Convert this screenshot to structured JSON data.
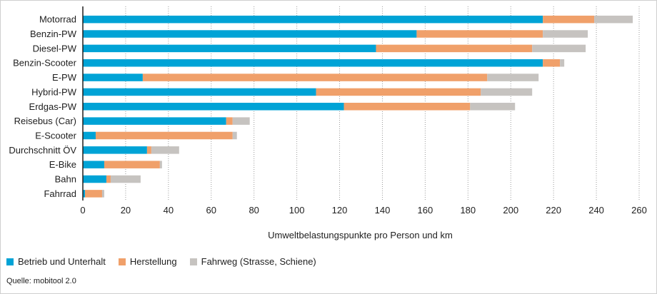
{
  "chart_data": {
    "type": "bar",
    "orientation": "horizontal",
    "stacked": true,
    "categories": [
      "Motorrad",
      "Benzin-PW",
      "Diesel-PW",
      "Benzin-Scooter",
      "E-PW",
      "Hybrid-PW",
      "Erdgas-PW",
      "Reisebus (Car)",
      "E-Scooter",
      "Durchschnitt ÖV",
      "E-Bike",
      "Bahn",
      "Fahrrad"
    ],
    "series": [
      {
        "name": "Betrieb und Unterhalt",
        "color": "#00a3d6",
        "values": [
          215,
          156,
          137,
          215,
          28,
          109,
          122,
          67,
          6,
          30,
          10,
          11,
          1
        ]
      },
      {
        "name": "Herstellung",
        "color": "#f0a06a",
        "values": [
          24,
          59,
          73,
          8,
          161,
          77,
          59,
          3,
          64,
          2,
          26,
          2,
          8
        ]
      },
      {
        "name": "Fahrweg (Strasse, Schiene)",
        "color": "#c6c3c0",
        "values": [
          18,
          21,
          25,
          2,
          24,
          24,
          21,
          8,
          2,
          13,
          1,
          14,
          1
        ]
      }
    ],
    "xlim": [
      0,
      260
    ],
    "xticks": [
      "0",
      "20",
      "40",
      "60",
      "80",
      "100",
      "120",
      "140",
      "160",
      "180",
      "200",
      "220",
      "240",
      "260"
    ],
    "xlabel": "Umweltbelastungspunkte pro Person und km",
    "grid": "vertical dotted",
    "legend_position": "bottom-left"
  },
  "source": "Quelle: mobitool 2.0"
}
